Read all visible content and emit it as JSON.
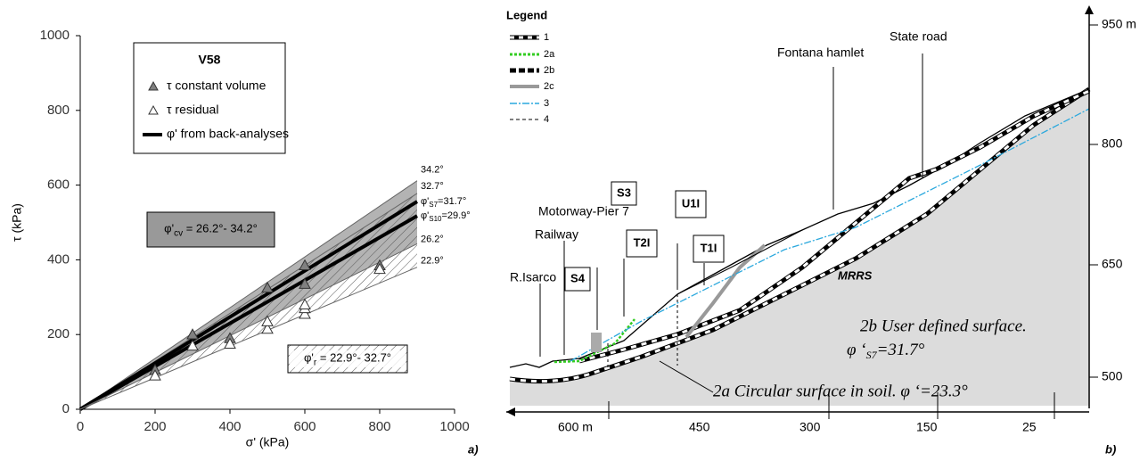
{
  "chart_data": {
    "type": "scatter",
    "legend_title": "V58",
    "xlabel": "σ' (kPa)",
    "ylabel": "τ (kPa)",
    "xlim": [
      0,
      1000
    ],
    "ylim": [
      0,
      1000
    ],
    "xticks": [
      0,
      200,
      400,
      600,
      800,
      1000
    ],
    "yticks": [
      0,
      200,
      400,
      600,
      800,
      1000
    ],
    "series": [
      {
        "name": "τ constant volume",
        "color": "#808080",
        "x": [
          200,
          300,
          400,
          500,
          600,
          600,
          800
        ],
        "values": [
          105,
          200,
          190,
          325,
          385,
          335,
          385
        ]
      },
      {
        "name": "τ residual",
        "color": "#ffffff",
        "x": [
          200,
          300,
          400,
          500,
          500,
          600,
          600,
          600,
          800
        ],
        "values": [
          90,
          170,
          175,
          215,
          235,
          255,
          270,
          280,
          375
        ]
      }
    ],
    "fit_line": {
      "name": "φ' from back-analyses",
      "color": "#000000"
    },
    "envelopes": [
      {
        "angle": 34.2,
        "label": "34.2°"
      },
      {
        "angle": 32.7,
        "label": "32.7°"
      },
      {
        "angle": 31.7,
        "label_parts": [
          "φ'",
          "S7",
          "=31.7°"
        ],
        "fit": true
      },
      {
        "angle": 29.9,
        "label_parts": [
          "φ'",
          "S10",
          "=29.9°"
        ],
        "fit": true
      },
      {
        "angle": 26.2,
        "label": "26.2°"
      },
      {
        "angle": 22.9,
        "label": "22.9°"
      }
    ],
    "bands": [
      {
        "range": [
          26.2,
          34.2
        ],
        "label_parts": [
          "φ'",
          "cv",
          " = 26.2°- 34.2°"
        ],
        "fill": "#999999"
      },
      {
        "range": [
          22.9,
          32.7
        ],
        "label_parts": [
          "φ'",
          "r",
          " = 22.9°- 32.7°"
        ],
        "fill": "hatch"
      }
    ],
    "panel_label": "a)"
  },
  "diagram": {
    "legend": {
      "title": "Legend",
      "items": [
        "1",
        "2a",
        "2b",
        "2c",
        "3",
        "4"
      ]
    },
    "labels": {
      "r_isarco": "R.Isarco",
      "railway": "Railway",
      "motorway": "Motorway-Pier 7",
      "fontana": "Fontana hamlet",
      "state_road": "State road",
      "mrrs": "MRRS"
    },
    "boreholes": [
      "S3",
      "S4",
      "T2I",
      "U1I",
      "T1I"
    ],
    "surface_2b": {
      "title": "2b User defined surface.",
      "phi": [
        "φ ‘",
        "S7",
        "=31.7°"
      ]
    },
    "surface_2a": "2a Circular surface in soil. φ ‘=23.3°",
    "elevation_axis": [
      "950 m",
      "800",
      "650",
      "500"
    ],
    "distance_axis": [
      "600 m",
      "450",
      "300",
      "150",
      "25"
    ],
    "panel_label": "b)"
  }
}
